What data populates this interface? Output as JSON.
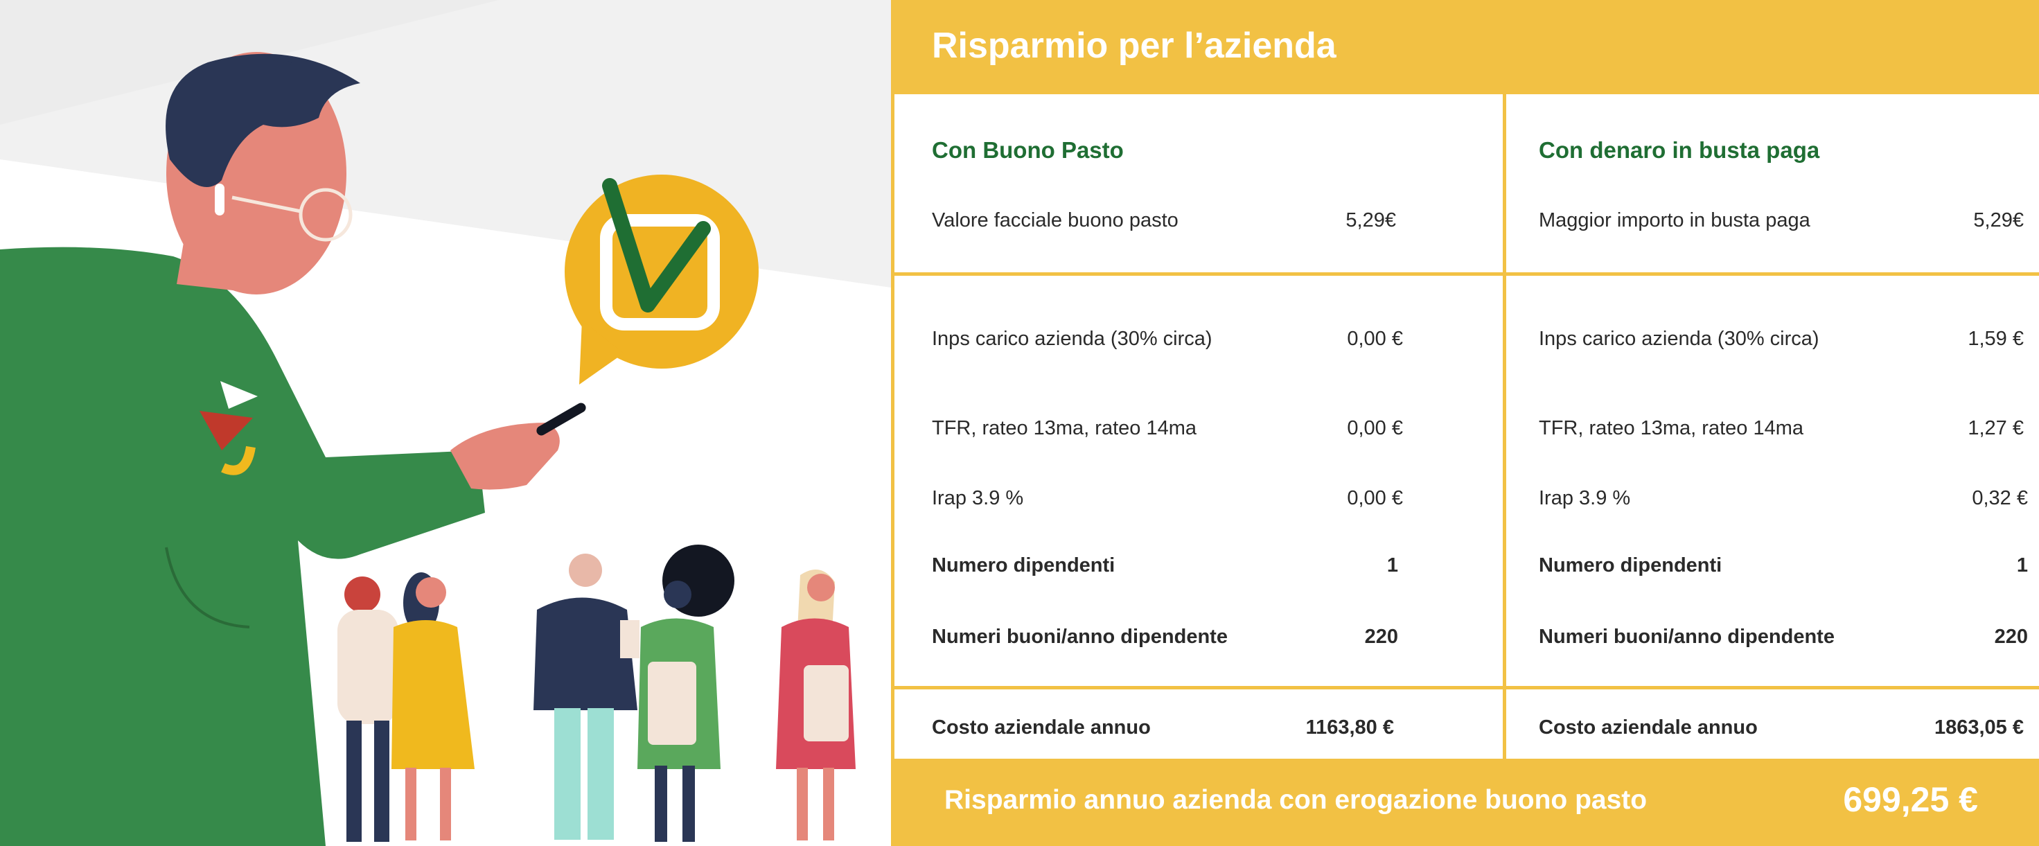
{
  "title": "Risparmio per l’azienda",
  "columns": [
    {
      "heading": "Con Buono Pasto",
      "face_label": "Valore facciale buono pasto",
      "face_value": "5,29€",
      "inps_label": "Inps carico azienda (30% circa)",
      "inps_value": "0,00 €",
      "tfr_label": "TFR, rateo 13ma, rateo 14ma",
      "tfr_value": "0,00 €",
      "irap_label": "Irap 3.9 %",
      "irap_value": "0,00 €",
      "employees_label": "Numero dipendenti",
      "employees_value": "1",
      "vouchers_label": "Numeri buoni/anno dipendente",
      "vouchers_value": "220",
      "cost_label": "Costo aziendale annuo",
      "cost_value": "1163,80 €"
    },
    {
      "heading": "Con denaro in busta paga",
      "face_label": "Maggior importo in busta paga",
      "face_value": "5,29€",
      "inps_label": "Inps carico azienda (30% circa)",
      "inps_value": "1,59 €",
      "tfr_label": "TFR, rateo 13ma, rateo 14ma",
      "tfr_value": "1,27 €",
      "irap_label": "Irap 3.9 %",
      "irap_value": "0,32 €",
      "employees_label": "Numero dipendenti",
      "employees_value": "1",
      "vouchers_label": "Numeri buoni/anno dipendente",
      "vouchers_value": "220",
      "cost_label": "Costo aziendale annuo",
      "cost_value": "1863,05 €"
    }
  ],
  "footer": {
    "label": "Risparmio annuo azienda con erogazione buono pasto",
    "value": "699,25 €"
  },
  "colors": {
    "accent": "#f2c144",
    "heading_green": "#1f6e33",
    "text": "#2a2a2a",
    "jacket_green": "#368a4a",
    "hair_navy": "#2a3655",
    "skin": "#e5877a"
  },
  "icons": {
    "check": "checkmark-speech-bubble-icon"
  }
}
